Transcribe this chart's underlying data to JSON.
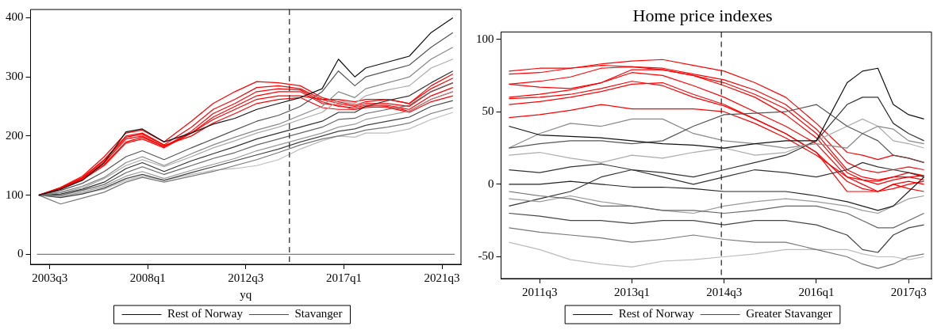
{
  "chart_data": [
    {
      "type": "line",
      "xlabel": "yq",
      "legend": "bottom",
      "x": [
        "2003-01",
        "2004-01",
        "2005-01",
        "2006-01",
        "2007-01",
        "2007-10",
        "2008-10",
        "2010-01",
        "2011-01",
        "2012-01",
        "2013-01",
        "2014-01",
        "2015-01",
        "2016-01",
        "2016-10",
        "2017-07",
        "2018-01",
        "2019-01",
        "2020-01",
        "2021-01",
        "2022-01"
      ],
      "xlim": [
        "2002-08-15",
        "2022-05-15"
      ],
      "xticks": [
        {
          "value": "2003-07",
          "label": "2003q3"
        },
        {
          "value": "2008-01",
          "label": "2008q1"
        },
        {
          "value": "2012-07",
          "label": "2012q3"
        },
        {
          "value": "2017-01",
          "label": "2017q1"
        },
        {
          "value": "2021-07",
          "label": "2021q3"
        }
      ],
      "ylim": [
        -17,
        414
      ],
      "yticks": [
        0,
        100,
        200,
        300,
        400
      ],
      "ref_lines": [
        {
          "axis": "x",
          "value": "2014-07",
          "color": "#333333",
          "line_style": "dashed"
        },
        {
          "axis": "y",
          "value": 0,
          "color": "#808080",
          "line_style": "solid"
        }
      ],
      "series": [
        {
          "name": "Rest of Norway",
          "color": "#111111",
          "values": [
            100,
            110,
            125,
            155,
            207,
            212,
            190,
            205,
            220,
            230,
            245,
            255,
            265,
            280,
            330,
            300,
            315,
            325,
            335,
            375,
            400
          ]
        },
        {
          "color": "#555555",
          "values": [
            100,
            108,
            120,
            140,
            165,
            175,
            160,
            180,
            195,
            210,
            225,
            235,
            250,
            275,
            310,
            285,
            300,
            310,
            320,
            350,
            375
          ]
        },
        {
          "color": "#888888",
          "values": [
            100,
            105,
            115,
            130,
            155,
            165,
            150,
            170,
            185,
            198,
            210,
            220,
            235,
            250,
            275,
            265,
            280,
            290,
            300,
            330,
            350
          ]
        },
        {
          "color": "#aaaaaa",
          "values": [
            100,
            104,
            112,
            128,
            150,
            160,
            148,
            165,
            180,
            192,
            205,
            215,
            228,
            240,
            260,
            255,
            268,
            278,
            285,
            315,
            330
          ]
        },
        {
          "color": "#333333",
          "values": [
            100,
            102,
            110,
            122,
            145,
            155,
            140,
            158,
            170,
            182,
            195,
            205,
            215,
            225,
            240,
            240,
            250,
            260,
            268,
            290,
            310
          ]
        },
        {
          "color": "#666666",
          "values": [
            100,
            100,
            108,
            118,
            138,
            148,
            135,
            150,
            162,
            172,
            185,
            195,
            205,
            215,
            228,
            230,
            238,
            245,
            252,
            275,
            290
          ]
        },
        {
          "color": "#999999",
          "values": [
            100,
            98,
            105,
            115,
            132,
            140,
            128,
            142,
            152,
            162,
            175,
            185,
            195,
            205,
            215,
            220,
            228,
            235,
            242,
            262,
            275
          ]
        },
        {
          "color": "#444444",
          "values": [
            100,
            96,
            102,
            112,
            128,
            135,
            125,
            138,
            148,
            158,
            168,
            178,
            190,
            200,
            208,
            212,
            218,
            225,
            232,
            250,
            260
          ]
        },
        {
          "color": "#777777",
          "values": [
            100,
            85,
            95,
            105,
            122,
            130,
            122,
            132,
            140,
            150,
            160,
            172,
            185,
            195,
            200,
            205,
            210,
            215,
            222,
            238,
            248
          ]
        },
        {
          "color": "#bbbbbb",
          "values": [
            100,
            97,
            103,
            110,
            125,
            132,
            125,
            135,
            142,
            145,
            150,
            160,
            178,
            192,
            200,
            198,
            205,
            205,
            212,
            228,
            240
          ]
        },
        {
          "name": "Stavanger",
          "color": "#ff0000",
          "values": [
            100,
            113,
            132,
            165,
            205,
            210,
            190,
            225,
            255,
            275,
            292,
            290,
            285,
            265,
            258,
            252,
            258,
            262,
            255,
            285,
            305
          ]
        },
        {
          "color": "#ff0000",
          "values": [
            100,
            112,
            130,
            160,
            200,
            205,
            185,
            215,
            245,
            262,
            282,
            285,
            280,
            262,
            255,
            250,
            255,
            255,
            250,
            275,
            290
          ]
        },
        {
          "color": "#ff0000",
          "values": [
            100,
            111,
            128,
            155,
            195,
            200,
            182,
            208,
            238,
            255,
            275,
            280,
            278,
            258,
            250,
            248,
            252,
            252,
            245,
            268,
            282
          ]
        },
        {
          "color": "#ff0000",
          "values": [
            100,
            110,
            126,
            150,
            188,
            195,
            180,
            205,
            232,
            250,
            268,
            275,
            275,
            255,
            252,
            245,
            248,
            250,
            242,
            262,
            275
          ]
        },
        {
          "color": "#ff0000",
          "values": [
            100,
            112,
            129,
            158,
            198,
            203,
            184,
            200,
            222,
            238,
            255,
            262,
            265,
            248,
            245,
            245,
            250,
            248,
            240,
            258,
            268
          ]
        },
        {
          "color": "#ff0000",
          "values": [
            100,
            111,
            128,
            152,
            190,
            198,
            182,
            205,
            228,
            245,
            262,
            268,
            268,
            262,
            262,
            258,
            262,
            262,
            255,
            280,
            298
          ]
        }
      ]
    },
    {
      "type": "line",
      "title": "Home price indexes",
      "legend": "bottom",
      "x": [
        "2011-01",
        "2011-07",
        "2012-01",
        "2012-07",
        "2013-01",
        "2013-07",
        "2014-01",
        "2014-07",
        "2015-01",
        "2015-07",
        "2016-01",
        "2016-07",
        "2016-10",
        "2017-01",
        "2017-04",
        "2017-07",
        "2017-10"
      ],
      "xlim": [
        "2010-11-15",
        "2017-11-15"
      ],
      "xticks": [
        {
          "value": "2011-07",
          "label": "2011q3"
        },
        {
          "value": "2013-01",
          "label": "2013q1"
        },
        {
          "value": "2014-07",
          "label": "2014q3"
        },
        {
          "value": "2016-01",
          "label": "2016q1"
        },
        {
          "value": "2017-07",
          "label": "2017q3"
        }
      ],
      "ylim": [
        -65,
        105
      ],
      "yticks": [
        -50,
        0,
        50,
        100
      ],
      "ref_lines": [
        {
          "axis": "x",
          "value": "2014-06-15",
          "color": "#333333",
          "line_style": "dashed"
        }
      ],
      "series": [
        {
          "name": "Rest of Norway",
          "color": "#111111",
          "values": [
            40,
            34,
            33,
            32,
            30,
            28,
            27,
            25,
            28,
            30,
            30,
            70,
            78,
            80,
            55,
            48,
            45
          ]
        },
        {
          "color": "#555555",
          "values": [
            25,
            28,
            30,
            30,
            28,
            30,
            40,
            48,
            49,
            50,
            55,
            40,
            35,
            30,
            20,
            18,
            15
          ]
        },
        {
          "color": "#888888",
          "values": [
            25,
            35,
            42,
            40,
            45,
            45,
            35,
            30,
            28,
            25,
            28,
            25,
            35,
            40,
            38,
            30,
            28
          ]
        },
        {
          "color": "#333333",
          "values": [
            10,
            8,
            12,
            14,
            10,
            8,
            5,
            10,
            15,
            20,
            30,
            55,
            60,
            60,
            42,
            35,
            30
          ]
        },
        {
          "color": "#aaaaaa",
          "values": [
            20,
            22,
            18,
            15,
            20,
            18,
            22,
            25,
            20,
            22,
            30,
            40,
            45,
            40,
            30,
            28,
            25
          ]
        },
        {
          "color": "#222222",
          "values": [
            0,
            0,
            2,
            0,
            -2,
            -2,
            -3,
            -5,
            -5,
            -5,
            -8,
            -12,
            -15,
            -18,
            -15,
            -5,
            5
          ]
        },
        {
          "color": "#666666",
          "values": [
            -5,
            -8,
            -10,
            -15,
            -15,
            -18,
            -18,
            -20,
            -18,
            -15,
            -15,
            -20,
            -25,
            -30,
            -30,
            -25,
            -20
          ]
        },
        {
          "color": "#999999",
          "values": [
            -10,
            -12,
            -8,
            -12,
            -15,
            -18,
            -20,
            -15,
            -12,
            -10,
            -12,
            -15,
            -18,
            -20,
            -15,
            -10,
            -8
          ]
        },
        {
          "color": "#444444",
          "values": [
            -20,
            -22,
            -25,
            -25,
            -27,
            -25,
            -25,
            -28,
            -25,
            -25,
            -28,
            -35,
            -45,
            -47,
            -35,
            -30,
            -28
          ]
        },
        {
          "color": "#777777",
          "values": [
            -30,
            -33,
            -35,
            -37,
            -40,
            -38,
            -35,
            -38,
            -40,
            -40,
            -45,
            -50,
            -55,
            -58,
            -55,
            -50,
            -48
          ]
        },
        {
          "color": "#bbbbbb",
          "values": [
            -40,
            -45,
            -52,
            -55,
            -57,
            -53,
            -52,
            -50,
            -48,
            -45,
            -45,
            -45,
            -48,
            -50,
            -50,
            -52,
            -50
          ]
        },
        {
          "color": "#333333",
          "values": [
            -15,
            -10,
            -5,
            5,
            10,
            5,
            0,
            5,
            10,
            8,
            5,
            10,
            15,
            12,
            10,
            8,
            5
          ]
        },
        {
          "name": "Greater Stavanger",
          "color": "#ff0000",
          "values": [
            78,
            80,
            80,
            83,
            85,
            86,
            82,
            78,
            70,
            60,
            42,
            22,
            20,
            17,
            20,
            18,
            15
          ]
        },
        {
          "color": "#ff0000",
          "values": [
            76,
            77,
            80,
            82,
            81,
            80,
            76,
            72,
            65,
            55,
            38,
            15,
            10,
            8,
            10,
            12,
            10
          ]
        },
        {
          "color": "#ff0000",
          "values": [
            69,
            71,
            74,
            80,
            81,
            79,
            75,
            70,
            62,
            52,
            35,
            10,
            5,
            3,
            5,
            8,
            6
          ]
        },
        {
          "color": "#ff0000",
          "values": [
            69,
            67,
            66,
            70,
            79,
            79,
            75,
            68,
            60,
            48,
            32,
            8,
            3,
            0,
            3,
            5,
            3
          ]
        },
        {
          "color": "#ff0000",
          "values": [
            60,
            62,
            65,
            70,
            77,
            75,
            68,
            60,
            50,
            40,
            28,
            5,
            0,
            -5,
            0,
            2,
            0
          ]
        },
        {
          "color": "#ff0000",
          "values": [
            59,
            60,
            62,
            66,
            71,
            68,
            60,
            54,
            45,
            35,
            22,
            2,
            -3,
            -5,
            0,
            -3,
            -5
          ]
        },
        {
          "color": "#ff0000",
          "values": [
            55,
            57,
            60,
            64,
            69,
            70,
            62,
            55,
            45,
            35,
            22,
            -5,
            -5,
            -5,
            -3,
            0,
            2
          ]
        },
        {
          "color": "#ff0000",
          "values": [
            46,
            48,
            51,
            55,
            52,
            52,
            52,
            50,
            42,
            32,
            20,
            5,
            3,
            2,
            5,
            5,
            6
          ]
        }
      ]
    }
  ]
}
